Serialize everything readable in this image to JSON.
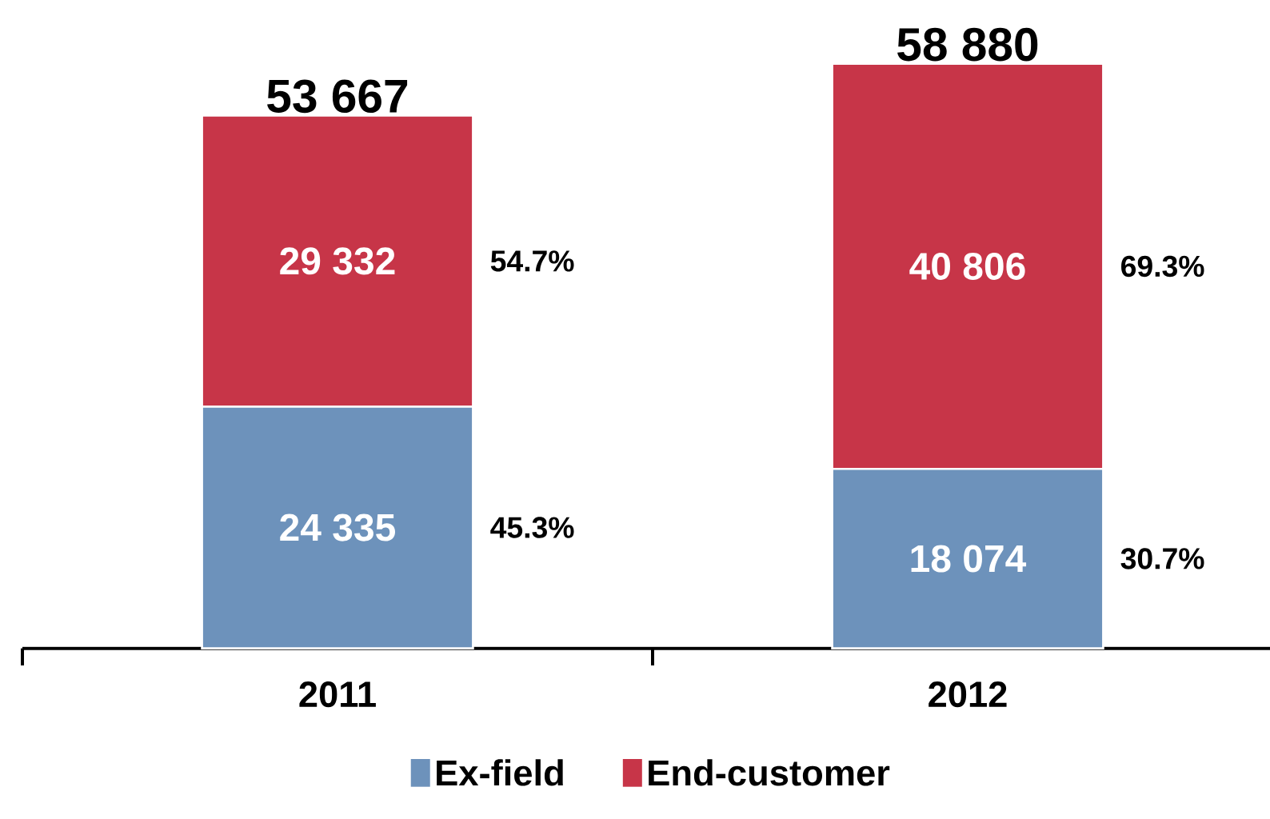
{
  "chart_data": {
    "type": "bar",
    "stacked": true,
    "categories": [
      "2011",
      "2012"
    ],
    "series": [
      {
        "name": "Ex-field",
        "color": "#6d92bb",
        "values": [
          24335,
          18074
        ],
        "value_labels": [
          "24 335",
          "18 074"
        ]
      },
      {
        "name": "End-customer",
        "color": "#c73548",
        "values": [
          29332,
          40806
        ],
        "value_labels": [
          "29 332",
          "40 806"
        ]
      }
    ],
    "totals": [
      "53 667",
      "58 880"
    ],
    "annotations": [
      "45.3%",
      "54.7%",
      "30.7%",
      "69.3%"
    ],
    "legend": "bottom",
    "tick_labels": "x"
  }
}
